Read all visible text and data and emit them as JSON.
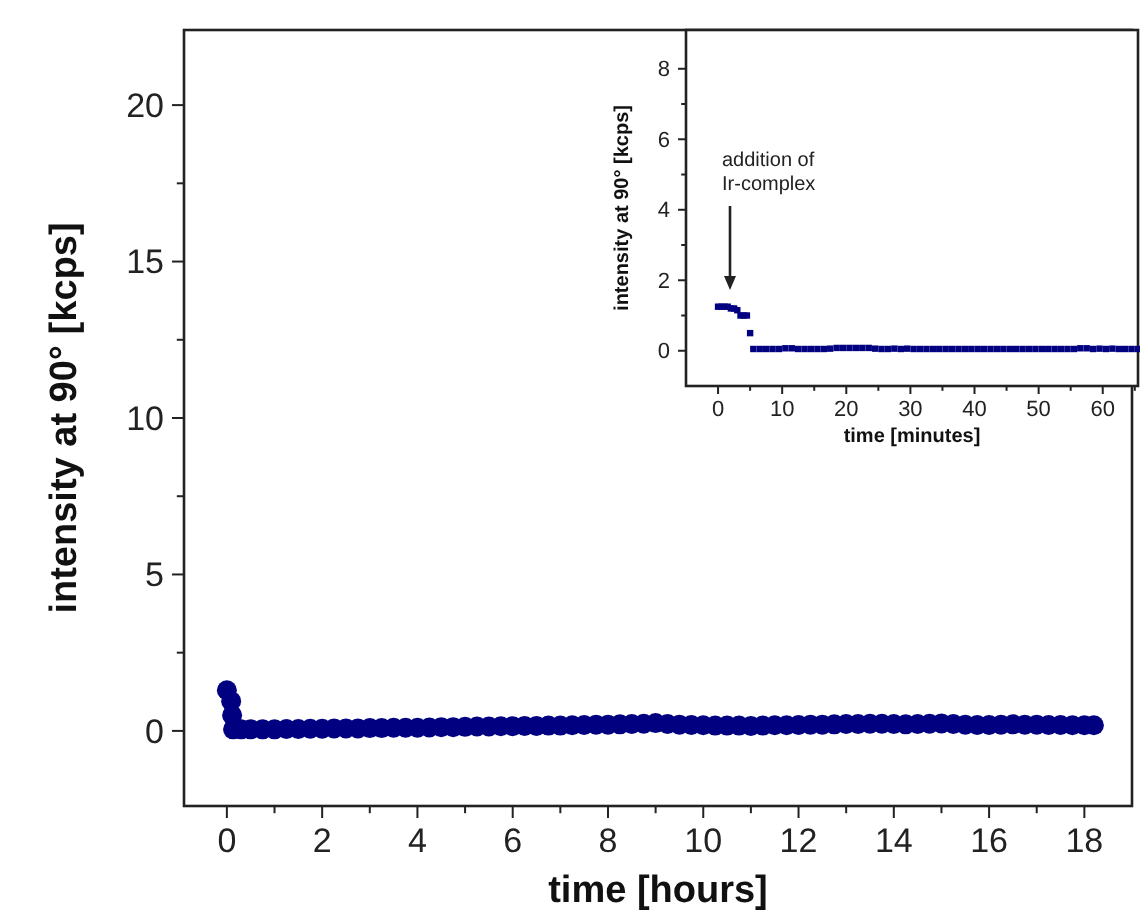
{
  "chart_data": [
    {
      "type": "scatter",
      "xlabel": "time [hours]",
      "ylabel": "intensity at 90° [kcps]",
      "marker": "circle",
      "xlim": [
        -0.9,
        19
      ],
      "xticks": [
        0,
        {
          "value": 1,
          "label": null
        },
        2,
        {
          "value": 3,
          "label": null
        },
        4,
        {
          "value": 5,
          "label": null
        },
        6,
        {
          "value": 7,
          "label": null
        },
        8,
        {
          "value": 9,
          "label": null
        },
        10,
        {
          "value": 11,
          "label": null
        },
        12,
        {
          "value": 13,
          "label": null
        },
        14,
        {
          "value": 15,
          "label": null
        },
        16,
        {
          "value": 17,
          "label": null
        },
        18
      ],
      "ylim": [
        -2.4,
        22.4
      ],
      "yticks": [
        0,
        {
          "value": 2.5,
          "label": null
        },
        5,
        {
          "value": 7.5,
          "label": null
        },
        10,
        {
          "value": 12.5,
          "label": null
        },
        15,
        {
          "value": 17.5,
          "label": null
        },
        20
      ],
      "series": [
        {
          "color": "#000080",
          "x": [
            0,
            0.09,
            0.11,
            0.13,
            0.3,
            0.5,
            0.75,
            1,
            1.25,
            1.5,
            1.75,
            2,
            2.25,
            2.5,
            2.75,
            3,
            3.25,
            3.5,
            3.75,
            4,
            4.25,
            4.5,
            4.75,
            5,
            5.25,
            5.5,
            5.75,
            6,
            6.25,
            6.5,
            6.75,
            7,
            7.25,
            7.5,
            7.75,
            8,
            8.25,
            8.5,
            8.75,
            9,
            9.25,
            9.5,
            9.75,
            10,
            10.25,
            10.5,
            10.75,
            11,
            11.25,
            11.5,
            11.75,
            12,
            12.25,
            12.5,
            12.75,
            13,
            13.25,
            13.5,
            13.75,
            14,
            14.25,
            14.5,
            14.75,
            15,
            15.25,
            15.5,
            15.75,
            16,
            16.25,
            16.5,
            16.75,
            17,
            17.25,
            17.5,
            17.75,
            18,
            18.2
          ],
          "values": [
            1.3,
            0.95,
            0.5,
            0.05,
            0.05,
            0.05,
            0.05,
            0.05,
            0.06,
            0.06,
            0.07,
            0.07,
            0.08,
            0.08,
            0.08,
            0.09,
            0.09,
            0.1,
            0.1,
            0.1,
            0.11,
            0.12,
            0.12,
            0.13,
            0.14,
            0.14,
            0.15,
            0.15,
            0.16,
            0.16,
            0.17,
            0.17,
            0.18,
            0.19,
            0.2,
            0.2,
            0.21,
            0.22,
            0.23,
            0.25,
            0.22,
            0.2,
            0.19,
            0.18,
            0.17,
            0.17,
            0.17,
            0.16,
            0.17,
            0.18,
            0.18,
            0.19,
            0.2,
            0.2,
            0.21,
            0.22,
            0.22,
            0.23,
            0.23,
            0.22,
            0.21,
            0.22,
            0.23,
            0.24,
            0.22,
            0.2,
            0.19,
            0.19,
            0.2,
            0.21,
            0.2,
            0.2,
            0.19,
            0.19,
            0.18,
            0.18,
            0.18
          ]
        }
      ]
    },
    {
      "type": "scatter",
      "xlabel": "time [minutes]",
      "ylabel": "intensity at 90° [kcps]",
      "marker": "square",
      "xlim": [
        -5,
        65.5
      ],
      "xticks": [
        0,
        {
          "value": 5,
          "label": null
        },
        10,
        {
          "value": 15,
          "label": null
        },
        20,
        {
          "value": 25,
          "label": null
        },
        30,
        {
          "value": 35,
          "label": null
        },
        40,
        {
          "value": 45,
          "label": null
        },
        50,
        {
          "value": 55,
          "label": null
        },
        60,
        {
          "value": 65,
          "label": null
        }
      ],
      "ylim": [
        -1,
        9.1
      ],
      "yticks": [
        0,
        {
          "value": 1,
          "label": null
        },
        2,
        {
          "value": 3,
          "label": null
        },
        4,
        {
          "value": 5,
          "label": null
        },
        6,
        {
          "value": 7,
          "label": null
        },
        8
      ],
      "annotations": [
        "addition of Ir-complex"
      ],
      "series": [
        {
          "color": "#000080",
          "x": [
            0,
            0.5,
            1,
            1.5,
            2,
            2.5,
            3,
            3.5,
            4,
            4.5,
            5,
            5.5,
            6.5,
            7.5,
            8.5,
            9.5,
            10.5,
            11.5,
            12.5,
            13.5,
            14.5,
            15.5,
            16.5,
            17.5,
            18.5,
            19.5,
            20.5,
            21.5,
            22.5,
            23.5,
            24.5,
            25.5,
            26.5,
            27.5,
            28.5,
            29.5,
            30.5,
            31.5,
            32.5,
            33.5,
            34.5,
            35.5,
            36.5,
            37.5,
            38.5,
            39.5,
            40.5,
            41.5,
            42.5,
            43.5,
            44.5,
            45.5,
            46.5,
            47.5,
            48.5,
            49.5,
            50.5,
            51.5,
            52.5,
            53.5,
            54.5,
            55.5,
            56.5,
            57.5,
            58.5,
            59.5,
            60.5,
            61.5,
            62.5,
            63.5,
            64.5,
            65.5
          ],
          "values": [
            1.25,
            1.25,
            1.25,
            1.25,
            1.2,
            1.2,
            1.15,
            1.0,
            1.0,
            1.0,
            0.5,
            0.05,
            0.05,
            0.05,
            0.05,
            0.05,
            0.07,
            0.07,
            0.05,
            0.05,
            0.05,
            0.05,
            0.05,
            0.06,
            0.08,
            0.08,
            0.08,
            0.08,
            0.08,
            0.08,
            0.06,
            0.05,
            0.05,
            0.06,
            0.05,
            0.06,
            0.05,
            0.05,
            0.05,
            0.05,
            0.05,
            0.05,
            0.05,
            0.05,
            0.05,
            0.05,
            0.05,
            0.05,
            0.05,
            0.05,
            0.05,
            0.05,
            0.05,
            0.05,
            0.05,
            0.05,
            0.05,
            0.05,
            0.05,
            0.05,
            0.05,
            0.05,
            0.07,
            0.07,
            0.05,
            0.06,
            0.05,
            0.06,
            0.05,
            0.05,
            0.05,
            0.05
          ]
        }
      ]
    }
  ]
}
